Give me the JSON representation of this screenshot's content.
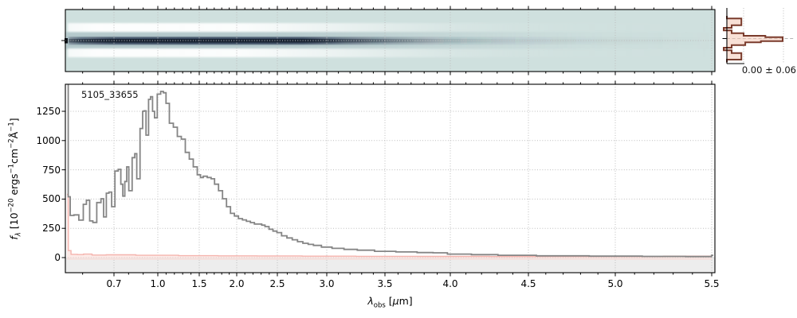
{
  "labels": {
    "title": "5105_33655",
    "stat": "0.00 ± 0.06",
    "xlabel_html": "<i>λ</i><sub>obs</sub> [<i>μ</i>m]",
    "ylabel_html": "<i>f</i><sub><i>λ</i></sub> [10<sup>−20</sup> ergs<sup>−1</sup>cm<sup>−2</sup>Å<sup>−1</sup>]"
  },
  "colors": {
    "figure_background": "#ffffff",
    "spectrum_line": "#858585",
    "uncertainty_line": "#f5b4ae",
    "uncertainty_fill": "#f9d9d4",
    "below_zero_band": "#ededed",
    "grid": "#bdbdbd",
    "axis": "#000000",
    "cutout_background": "#cfe0de",
    "cutout_halo": "#9cb3bb",
    "cutout_trace": "#22304a",
    "cutout_core": "#141e2c",
    "cutout_negative": "#ffffff",
    "profile_outline": "#7a3b2c",
    "profile_fill": "#f3c7b4",
    "profile_centerline": "#b3b3b3"
  },
  "chart_data": [
    {
      "id": "spectrum_1d",
      "type": "line",
      "title": "5105_33655",
      "xlabel": "λ_obs [μm]",
      "ylabel": "f_λ [10^−20 ergs^−1 cm^−2 Å^−1]",
      "x_scale": "nonlinear (prism dispersion: tick spacing compressed near 1.5–2 μm, wide at both ends)",
      "xlim": [
        0.55,
        5.52
      ],
      "ylim": [
        -130,
        1480
      ],
      "grid": "dotted, both axes",
      "x_ticks": [
        0.7,
        1.0,
        1.5,
        2.0,
        2.5,
        3.0,
        3.5,
        4.0,
        4.5,
        5.0,
        5.5
      ],
      "x_tick_labels": [
        "0.7",
        "1.0",
        "1.5",
        "2.0",
        "2.5",
        "3.0",
        "3.5",
        "4.0",
        "4.5",
        "5.0",
        "5.5"
      ],
      "x_minor_step": 0.1,
      "y_ticks": [
        0,
        250,
        500,
        750,
        1000,
        1250
      ],
      "y_tick_labels": [
        "0",
        "250",
        "500",
        "750",
        "1000",
        "1250"
      ],
      "series": [
        {
          "name": "spectrum",
          "style": "steps-gray",
          "x": [
            0.55,
            0.552,
            0.556,
            0.565,
            0.58,
            0.596,
            0.608,
            0.616,
            0.629,
            0.636,
            0.654,
            0.663,
            0.671,
            0.68,
            0.688,
            0.697,
            0.72,
            0.738,
            0.756,
            0.765,
            0.783,
            0.792,
            0.811,
            0.838,
            0.847,
            0.865,
            0.892,
            0.901,
            0.91,
            0.928,
            0.946,
            0.955,
            0.973,
            0.982,
            1.019,
            1.051,
            1.083,
            1.115,
            1.163,
            1.212,
            1.26,
            1.308,
            1.356,
            1.404,
            1.452,
            1.5,
            1.535,
            1.571,
            1.641,
            1.677,
            1.731,
            1.784,
            1.837,
            1.89,
            1.943,
            1.996,
            2.046,
            2.095,
            2.144,
            2.193,
            2.242,
            2.291,
            2.324,
            2.373,
            2.422,
            2.471,
            2.516,
            2.57,
            2.624,
            2.677,
            2.731,
            2.785,
            2.839,
            2.892,
            3.0,
            3.091,
            3.205,
            3.32,
            3.502,
            3.665,
            3.827,
            3.908,
            4.04,
            4.23,
            4.38,
            4.7,
            5.0,
            5.28,
            5.45,
            5.49,
            5.51
          ],
          "y": [
            1600,
            1600,
            520,
            360,
            365,
            320,
            455,
            490,
            313,
            300,
            470,
            503,
            347,
            550,
            560,
            435,
            740,
            754,
            627,
            525,
            650,
            775,
            571,
            854,
            888,
            673,
            1103,
            1250,
            1254,
            1046,
            1352,
            1374,
            1250,
            1194,
            1397,
            1420,
            1408,
            1318,
            1148,
            1114,
            1035,
            1012,
            899,
            842,
            775,
            707,
            684,
            695,
            684,
            673,
            627,
            571,
            503,
            435,
            378,
            355,
            333,
            322,
            310,
            299,
            287,
            287,
            277,
            265,
            242,
            226,
            213,
            186,
            168,
            152,
            136,
            122,
            113,
            104,
            90,
            79,
            70,
            63,
            54,
            48,
            43,
            41,
            30,
            25,
            20,
            15,
            12,
            10,
            9,
            9,
            20
          ]
        },
        {
          "name": "uncertainty",
          "style": "steps-pink",
          "x": [
            0.55,
            0.553,
            0.556,
            0.57,
            0.596,
            0.61,
            0.65,
            0.7,
            1.0,
            1.5,
            2.0,
            2.5,
            3.0,
            3.5,
            4.0,
            4.5,
            5.0,
            5.5
          ],
          "y": [
            540,
            540,
            60,
            28,
            26,
            30,
            22,
            24,
            20,
            16,
            15,
            14,
            12,
            11,
            10,
            9,
            9,
            12
          ]
        }
      ]
    },
    {
      "id": "spatial_profile",
      "type": "area",
      "orientation": "horizontal-steps",
      "stat_label": "0.00 ± 0.06",
      "row_bounds_frac": [
        0.143,
        0.19,
        0.31,
        0.357,
        0.404,
        0.453,
        0.5,
        0.524,
        0.596,
        0.619,
        0.667,
        0.714,
        0.762,
        0.81,
        0.929,
        0.976
      ],
      "amplitude": [
        0,
        0.26,
        0.086,
        -0.057,
        0.086,
        0.3,
        0.69,
        1.0,
        0.61,
        0.33,
        0.086,
        -0.057,
        0.086,
        0.26,
        0
      ]
    },
    {
      "id": "spectrum_2d_cutout",
      "type": "heatmap",
      "description": "2D rectified spectrum: pale teal background, dark dispersion trace along the center row (strongest at 0.6–1.6 μm, fading redward), white negative dither bands above and below the trace, dotted wavelength gridlines, small dark pixel block at left edge of trace"
    }
  ]
}
